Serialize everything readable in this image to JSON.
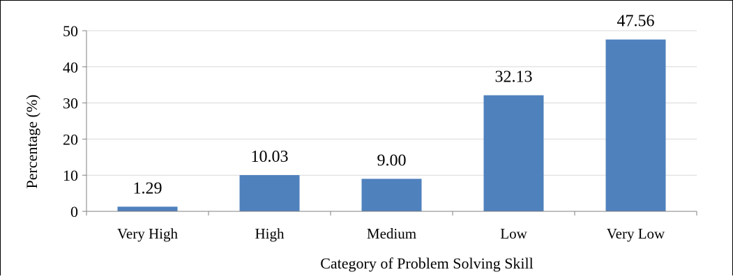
{
  "chart_data": {
    "type": "bar",
    "categories": [
      "Very High",
      "High",
      "Medium",
      "Low",
      "Very Low"
    ],
    "values": [
      1.29,
      10.03,
      9.0,
      32.13,
      47.56
    ],
    "value_labels": [
      "1.29",
      "10.03",
      "9.00",
      "32.13",
      "47.56"
    ],
    "title": "",
    "xlabel": "Category of Problem Solving Skill",
    "ylabel": "Percentage (%)",
    "ylim": [
      0,
      50
    ],
    "yticks": [
      0,
      10,
      20,
      30,
      40,
      50
    ],
    "ytick_labels": [
      "0",
      "10",
      "20",
      "30",
      "40",
      "50"
    ],
    "grid": true,
    "legend": "none",
    "bar_color": "#4F81BD",
    "grid_color": "#D9D9D9",
    "axis_color": "#808080"
  }
}
